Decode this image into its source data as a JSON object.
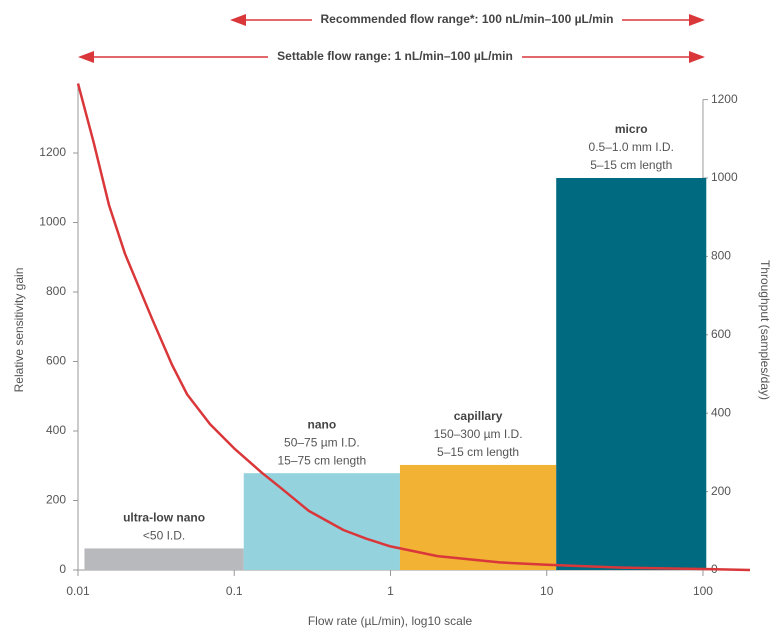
{
  "chart_data": {
    "type": "combo",
    "annotations": [
      "Recommended flow range*: 100 nL/min–100 µL/min",
      "Settable flow range: 1 nL/min–100 µL/min"
    ],
    "xlabel": "Flow rate (µL/min), log10 scale",
    "ylabel": "Relative sensitivity gain",
    "y2label": "Throughput (samples/day)",
    "xscale": "log",
    "xlim": [
      0.01,
      200
    ],
    "xticks": [
      0.01,
      0.1,
      1,
      10,
      100
    ],
    "ylim": [
      0,
      1400
    ],
    "yticks": [
      0,
      200,
      400,
      600,
      800,
      1000,
      1200
    ],
    "y2lim": [
      0,
      1200
    ],
    "y2ticks": [
      0,
      200,
      400,
      600,
      800,
      1000,
      1200
    ],
    "series": [
      {
        "type": "bar",
        "axis": "y2",
        "name": "ultra-low nano",
        "details": [
          "<50 I.D."
        ],
        "color": "#b7b9bc",
        "edges": [
          0.011,
          0.115
        ],
        "values": [
          55
        ]
      },
      {
        "type": "bar",
        "axis": "y2",
        "name": "nano",
        "details": [
          "50–75 µm I.D.",
          "15–75 cm length"
        ],
        "color": "#94d2de",
        "edges": [
          0.115,
          1.15
        ],
        "values": [
          247
        ]
      },
      {
        "type": "bar",
        "axis": "y2",
        "name": "capillary",
        "details": [
          "150–300 µm I.D.",
          "5–15 cm length"
        ],
        "color": "#f2b234",
        "edges": [
          1.15,
          11.5
        ],
        "values": [
          268
        ]
      },
      {
        "type": "bar",
        "axis": "y2",
        "name": "micro",
        "details": [
          "0.5–1.0 mm I.D.",
          "5–15 cm length"
        ],
        "color": "#006a80",
        "edges": [
          11.5,
          105
        ],
        "values": [
          1000
        ]
      },
      {
        "type": "line",
        "color": "#d9373a",
        "x": [
          0.01,
          0.0126,
          0.0158,
          0.02,
          0.03,
          0.04,
          0.05,
          0.07,
          0.1,
          0.15,
          0.2,
          0.3,
          0.5,
          0.7,
          1,
          2,
          5,
          10,
          30,
          100,
          200
        ],
        "values": [
          1400,
          1230,
          1050,
          910,
          720,
          590,
          505,
          420,
          350,
          280,
          235,
          170,
          115,
          90,
          68,
          40,
          22,
          15,
          7,
          3,
          0
        ]
      }
    ]
  }
}
